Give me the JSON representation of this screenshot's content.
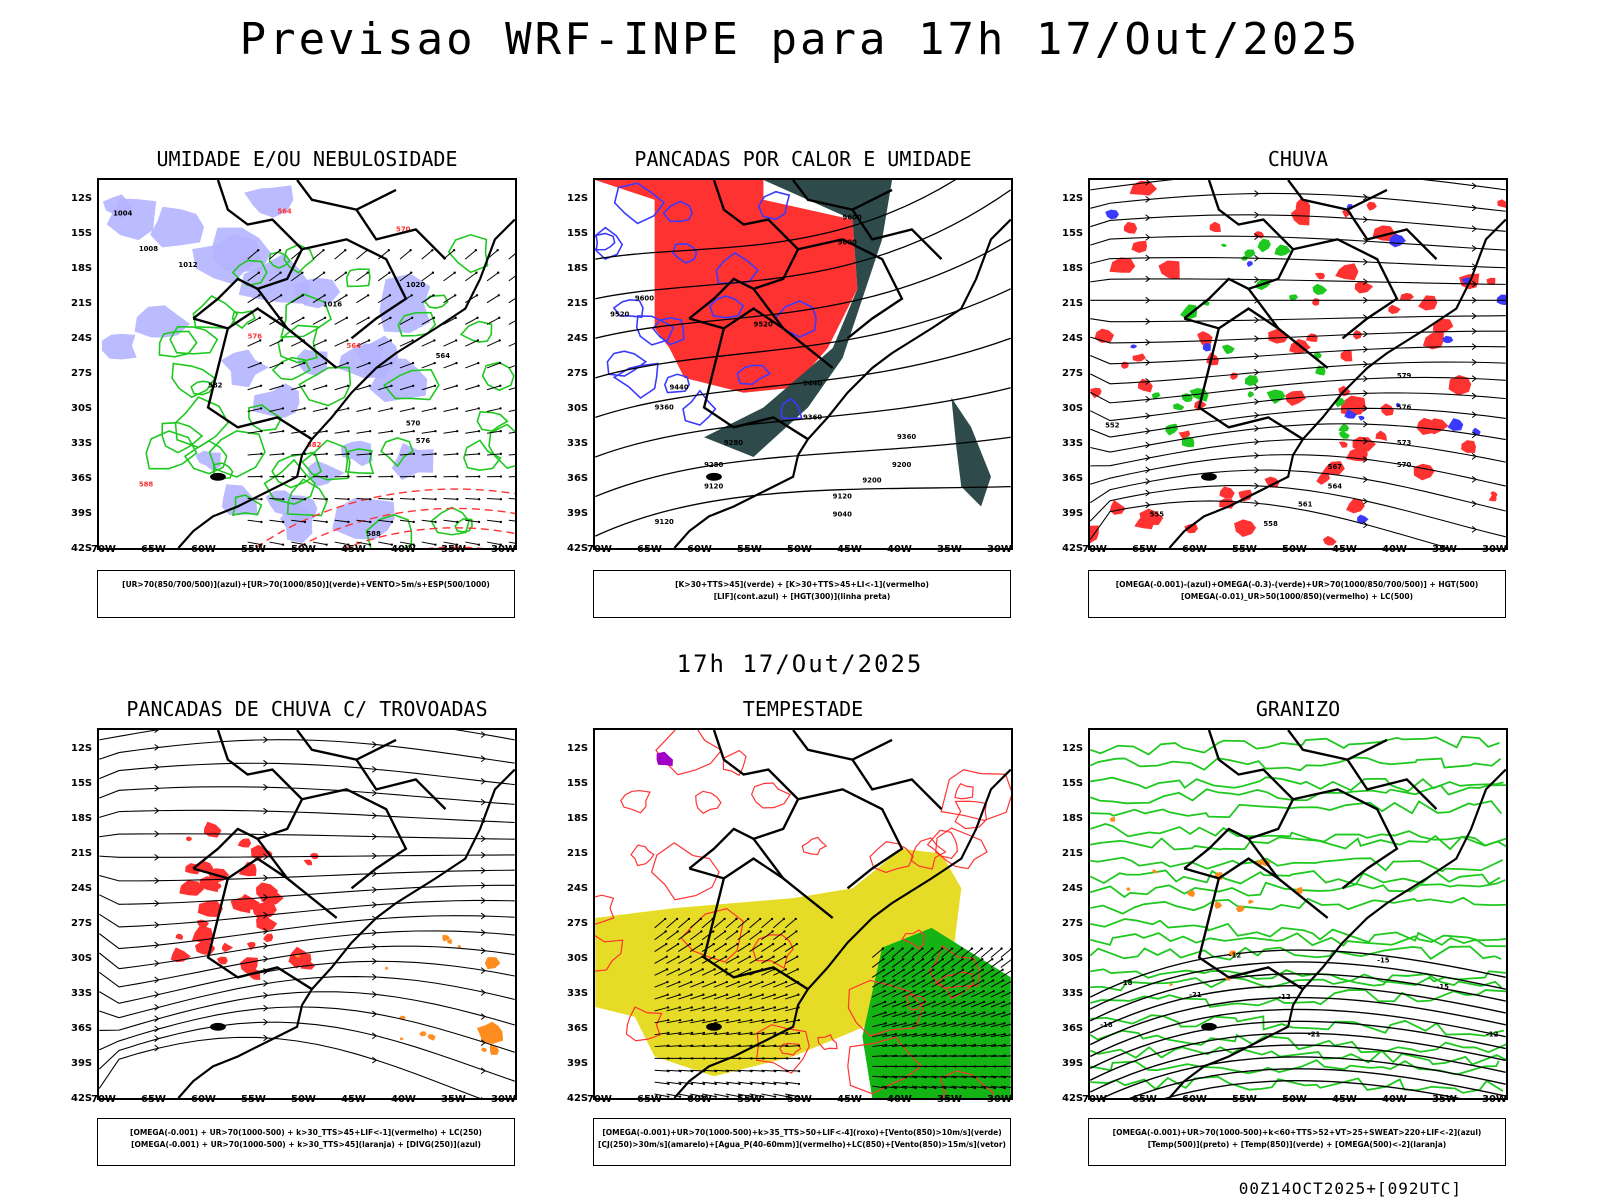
{
  "title": "Previsao WRF-INPE  para 17h 17/Out/2025",
  "subtitle": "17h 17/Out/2025",
  "footer": "00Z14OCT2025+[092UTC]",
  "axes": {
    "lat_labels": [
      "12S",
      "15S",
      "18S",
      "21S",
      "24S",
      "27S",
      "30S",
      "33S",
      "36S",
      "39S",
      "42S"
    ],
    "lon_labels": [
      "70W",
      "65W",
      "60W",
      "55W",
      "50W",
      "45W",
      "40W",
      "35W",
      "30W"
    ]
  },
  "panels": [
    {
      "title": "UMIDADE E/OU NEBULOSIDADE",
      "legend": [
        "[UR>70(850/700/500)](azul)+[UR>70(1000/850)](verde)+VENTO>5m/s+ESP(500/1000)"
      ]
    },
    {
      "title": "PANCADAS POR CALOR E UMIDADE",
      "legend": [
        "[K>30+TTS>45](verde) + [K>30+TTS>45+LI<-1](vermelho)",
        "[LIF](cont.azul) + [HGT(300)](linha preta)"
      ]
    },
    {
      "title": "CHUVA",
      "legend": [
        "[OMEGA(-0.001)-(azul)+OMEGA(-0.3)-(verde)+UR>70(1000/850/700/500)] + HGT(500)",
        "[OMEGA(-0.01)_UR>50(1000/850)(vermelho) + LC(500)"
      ]
    },
    {
      "title": "PANCADAS DE CHUVA C/ TROVOADAS",
      "legend": [
        "[OMEGA(-0.001) + UR>70(1000-500) + k>30_TTS>45+LIF<-1](vermelho) + LC(250)",
        "[OMEGA(-0.001) + UR>70(1000-500) + k>30_TTS>45](laranja) + [DIVG(250)](azul)"
      ]
    },
    {
      "title": "TEMPESTADE",
      "legend": [
        "[OMEGA(-0.001)+UR>70(1000-500)+k>35_TTS>50+LIF<-4](roxo)+[Vento(850)>10m/s](verde)",
        "[CJ(250)>30m/s](amarelo)+[Agua_P(40-60mm)](vermelho)+LC(850)+[Vento(850)>15m/s](vetor)"
      ]
    },
    {
      "title": "GRANIZO",
      "legend": [
        "[OMEGA(-0.001)+UR>70(1000-500)+k<60+TTS>52+VT>25+SWEAT>220+LIF<-2](azul)",
        "[Temp(500)](preto) + [Temp(850)](verde) + [OMEGA(500)<-2](laranja)"
      ]
    }
  ],
  "contour_labels": {
    "p1": [
      "1004",
      "1008",
      "1012",
      "1016",
      "1020",
      "564",
      "570",
      "576",
      "582",
      "588"
    ],
    "p2": [
      "9600",
      "9520",
      "9440",
      "9360",
      "9280",
      "9200",
      "9120",
      "9040"
    ],
    "p3": [
      "579",
      "576",
      "573",
      "570",
      "567",
      "564",
      "561",
      "558",
      "555",
      "552"
    ],
    "p6": [
      "-12",
      "-15",
      "-18",
      "-21"
    ]
  },
  "colors": {
    "green": "#1ec81e",
    "blue": "#3a3aff",
    "lightblue": "#b4b4ff",
    "red": "#ff3232",
    "orange": "#ff8c1e",
    "yellow": "#e6dc28",
    "darkteal": "#2e4a4a",
    "purple": "#a000c8"
  }
}
